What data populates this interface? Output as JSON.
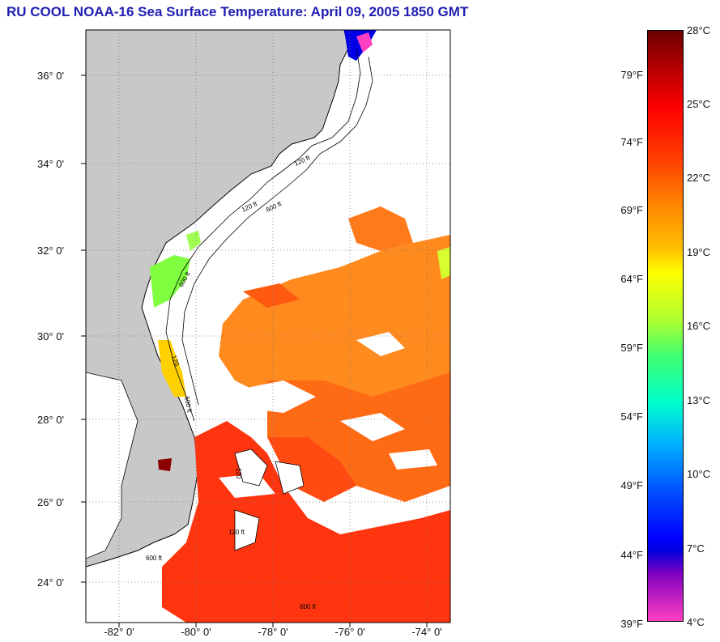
{
  "title": "RU COOL  NOAA-16  Sea Surface Temperature:  April 09, 2005 1850 GMT",
  "map": {
    "lat_labels": [
      "36° 0'",
      "34° 0'",
      "32° 0'",
      "30° 0'",
      "28° 0'",
      "26° 0'",
      "24° 0'"
    ],
    "lon_labels": [
      "-82° 0'",
      "-80° 0'",
      "-78° 0'",
      "-76° 0'",
      "-74° 0'"
    ],
    "contour_labels": [
      "120 ft",
      "600 ft",
      "120 ft",
      "600 ft",
      "120",
      "600 ft",
      "120",
      "120 ft",
      "600 ft",
      "600 ft"
    ],
    "colors": {
      "land": "#c8c8c8",
      "cloud": "#ffffff",
      "warm": "#ff3300",
      "orange": "#ff8c1a"
    }
  },
  "colorbar": {
    "fahrenheit": [
      "79°F",
      "74°F",
      "69°F",
      "64°F",
      "59°F",
      "54°F",
      "49°F",
      "44°F",
      "39°F"
    ],
    "celsius": [
      "28°C",
      "25°C",
      "22°C",
      "19°C",
      "16°C",
      "13°C",
      "10°C",
      "7°C",
      "4°C"
    ]
  }
}
